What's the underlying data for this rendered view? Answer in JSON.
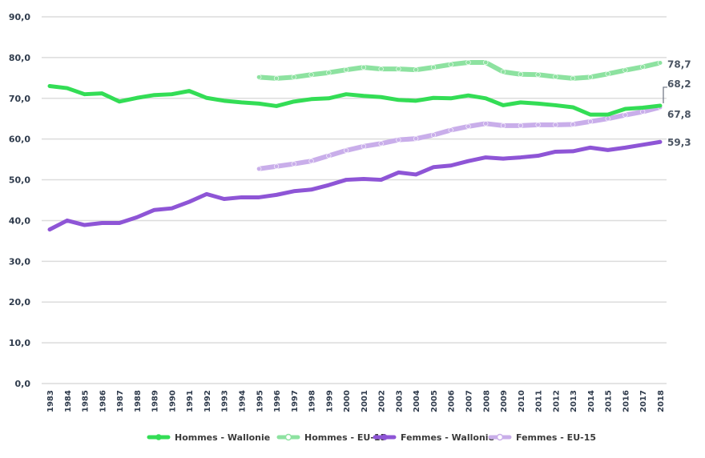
{
  "chart_data": {
    "type": "line",
    "x": [
      "1983",
      "1984",
      "1985",
      "1986",
      "1987",
      "1988",
      "1989",
      "1990",
      "1991",
      "1992",
      "1993",
      "1994",
      "1995",
      "1996",
      "1997",
      "1998",
      "1999",
      "2000",
      "2001",
      "2002",
      "2003",
      "2004",
      "2005",
      "2006",
      "2007",
      "2008",
      "2009",
      "2010",
      "2011",
      "2012",
      "2013",
      "2014",
      "2015",
      "2016",
      "2017",
      "2018"
    ],
    "ylim": [
      0,
      90
    ],
    "yticks": [
      "0,0",
      "10,0",
      "20,0",
      "30,0",
      "40,0",
      "50,0",
      "60,0",
      "70,0",
      "80,0",
      "90,0"
    ],
    "grid": true,
    "legend_position": "bottom",
    "series": [
      {
        "name": "Hommes - Wallonie",
        "color": "#33dd55",
        "style": "solid-thick",
        "values": [
          73.0,
          72.5,
          71.0,
          71.2,
          69.2,
          70.1,
          70.8,
          71.0,
          71.8,
          70.1,
          69.4,
          69.0,
          68.7,
          68.1,
          69.2,
          69.8,
          70.0,
          71.0,
          70.6,
          70.3,
          69.6,
          69.4,
          70.1,
          70.0,
          70.7,
          70.0,
          68.3,
          69.0,
          68.7,
          68.3,
          67.8,
          66.0,
          66.0,
          67.4,
          67.7,
          68.2
        ],
        "end_label": "68,2"
      },
      {
        "name": "Hommes - EU-15",
        "color": "#8de2a0",
        "style": "light-dots",
        "values": [
          null,
          null,
          null,
          null,
          null,
          null,
          null,
          null,
          null,
          null,
          null,
          null,
          75.2,
          74.9,
          75.2,
          75.8,
          76.3,
          77.0,
          77.6,
          77.2,
          77.2,
          77.0,
          77.6,
          78.3,
          78.8,
          78.8,
          76.5,
          75.9,
          75.8,
          75.3,
          74.9,
          75.2,
          76.0,
          76.9,
          77.7,
          78.7
        ],
        "end_label": "78,7"
      },
      {
        "name": "Femmes - Wallonie",
        "color": "#8e55d6",
        "style": "solid-thick",
        "values": [
          37.8,
          40.0,
          38.9,
          39.4,
          39.4,
          40.8,
          42.6,
          43.0,
          44.6,
          46.5,
          45.3,
          45.7,
          45.7,
          46.3,
          47.2,
          47.6,
          48.7,
          50.0,
          50.2,
          50.0,
          51.8,
          51.3,
          53.1,
          53.5,
          54.6,
          55.5,
          55.2,
          55.5,
          55.9,
          56.9,
          57.0,
          57.9,
          57.3,
          57.9,
          58.6,
          59.3
        ],
        "end_label": "59,3"
      },
      {
        "name": "Femmes - EU-15",
        "color": "#c9aeea",
        "style": "light-dots",
        "values": [
          null,
          null,
          null,
          null,
          null,
          null,
          null,
          null,
          null,
          null,
          null,
          null,
          52.7,
          53.3,
          53.9,
          54.6,
          55.9,
          57.2,
          58.2,
          58.9,
          59.8,
          60.1,
          61.0,
          62.2,
          63.1,
          63.8,
          63.3,
          63.3,
          63.5,
          63.5,
          63.6,
          64.3,
          65.0,
          65.9,
          66.7,
          67.8
        ],
        "end_label": "67,8"
      }
    ]
  }
}
